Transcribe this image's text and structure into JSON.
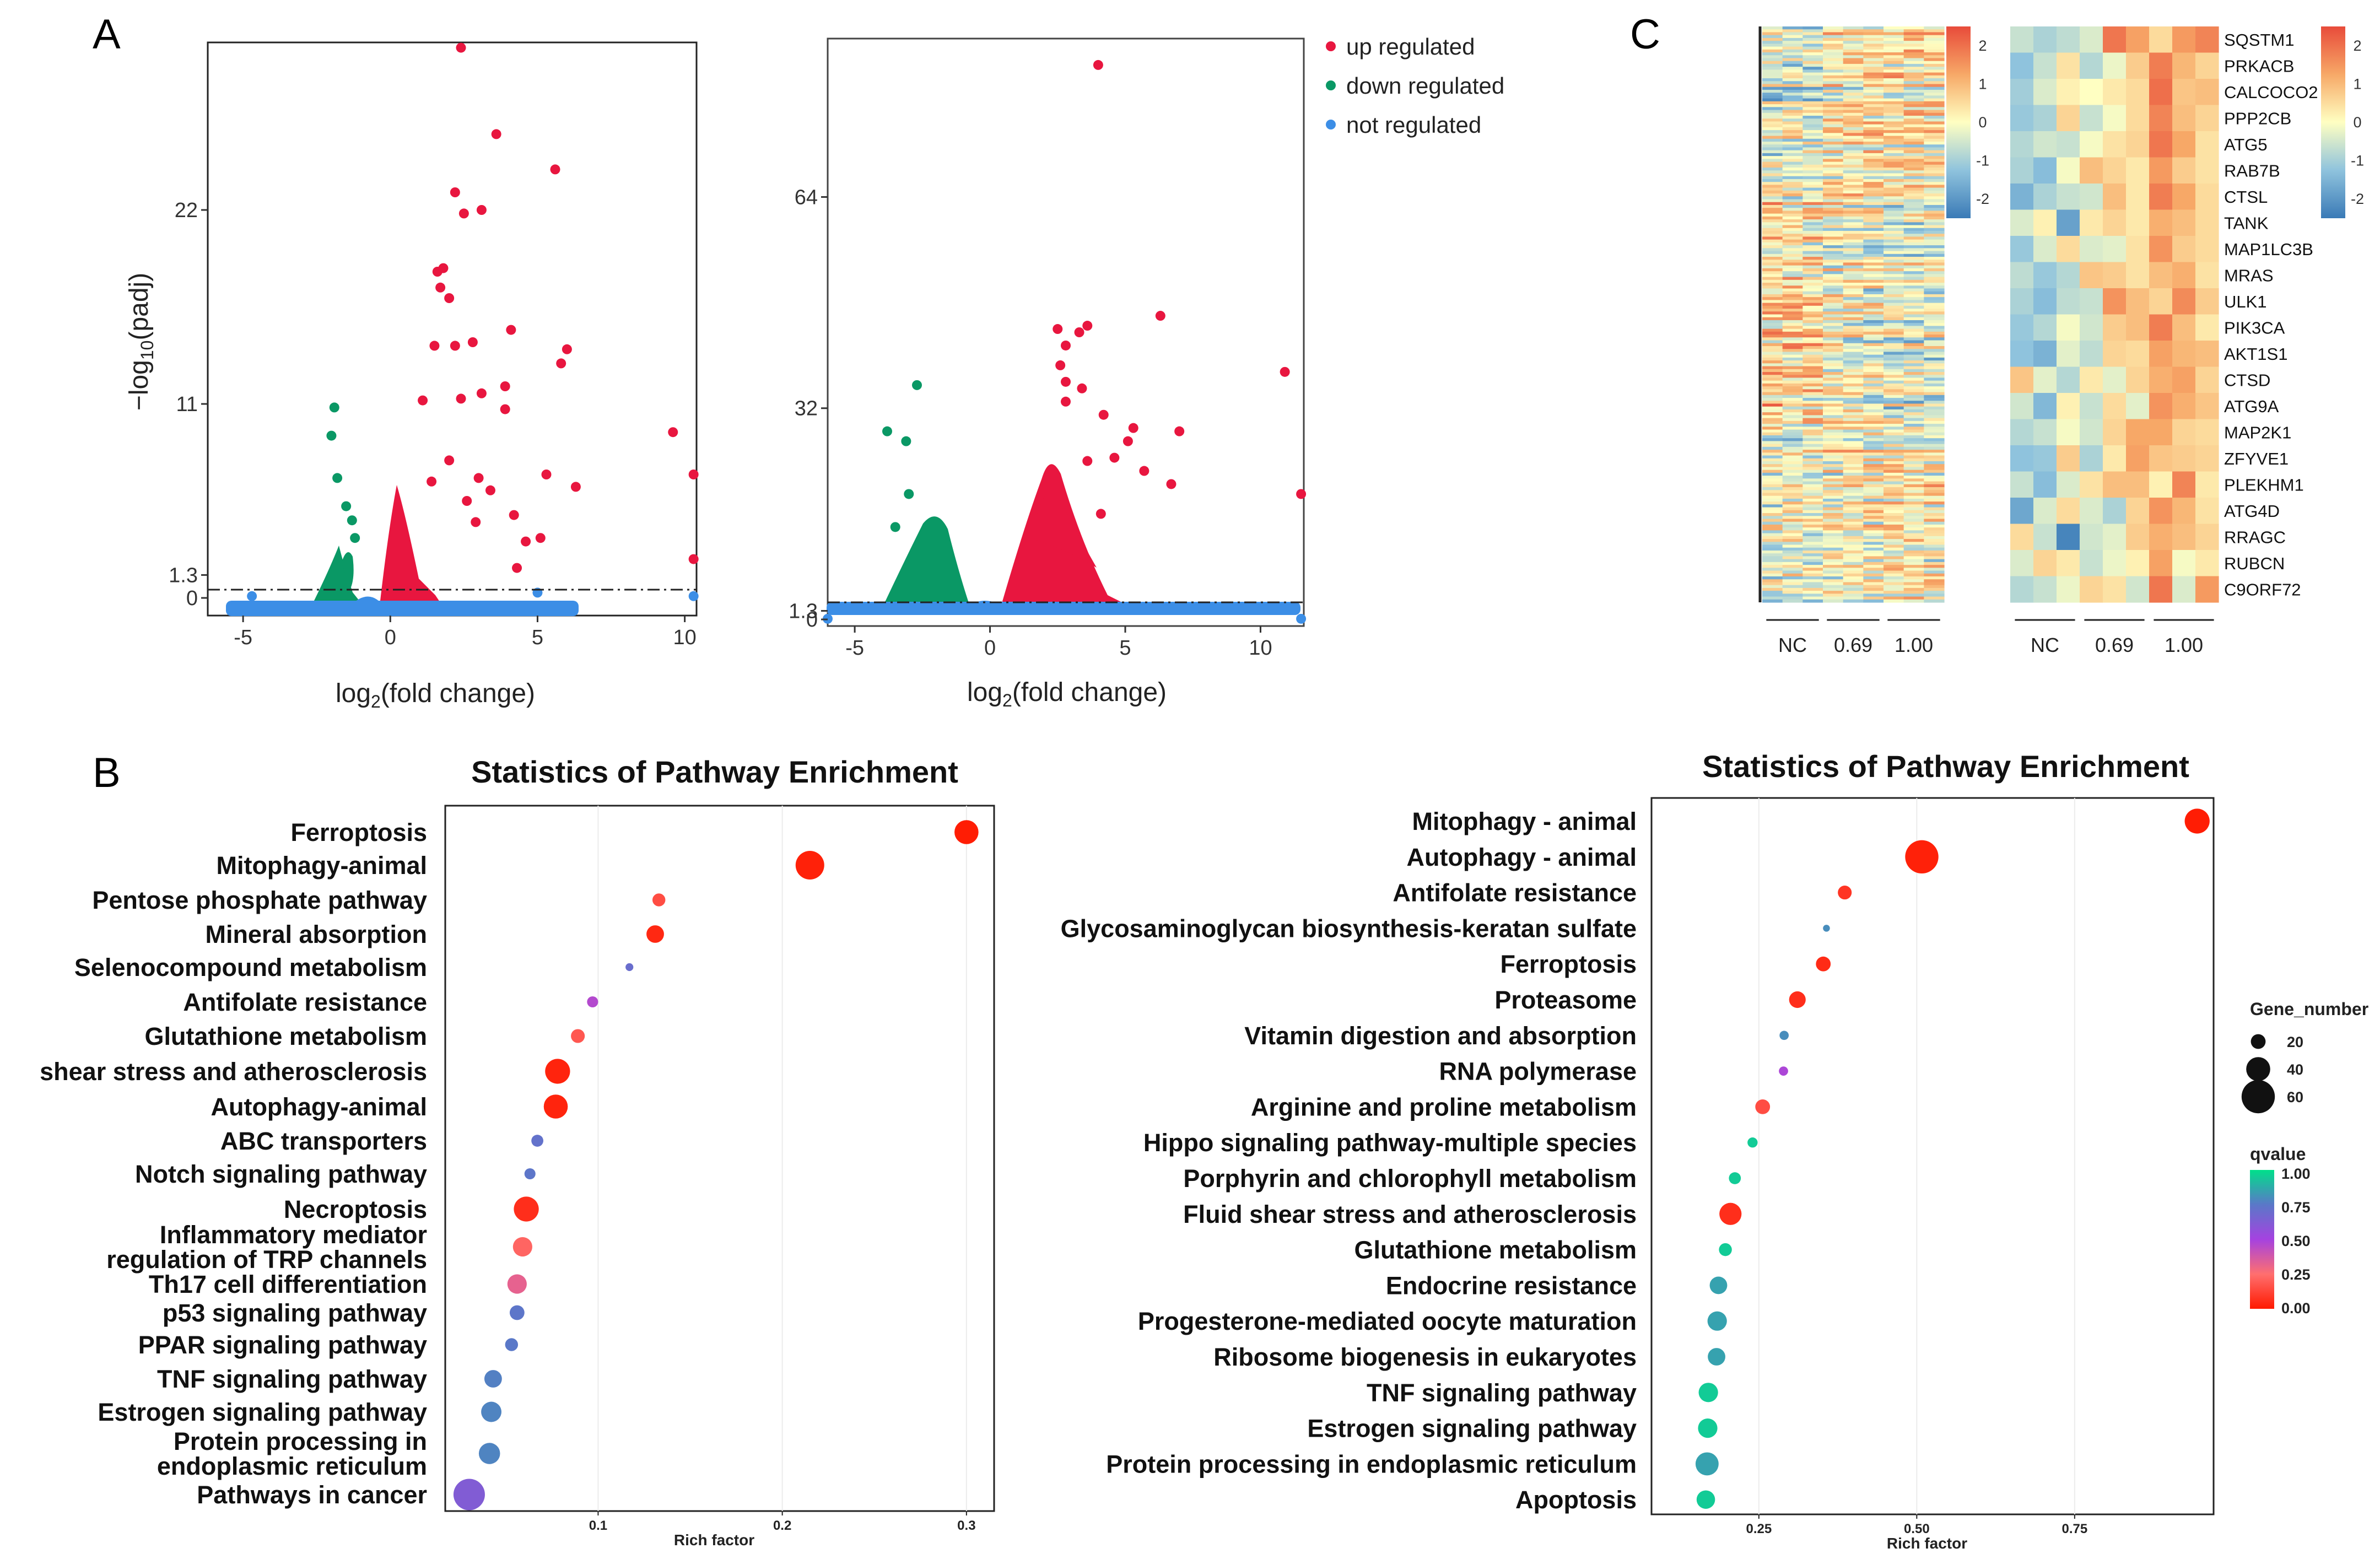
{
  "panels": {
    "a": "A",
    "b": "B",
    "c": "C"
  },
  "legend": {
    "entries": [
      {
        "label": "up regulated",
        "color": "#e8163f"
      },
      {
        "label": "down regulated",
        "color": "#0a9865"
      },
      {
        "label": "not regulated",
        "color": "#3c8ee6"
      }
    ]
  },
  "chart_data": [
    {
      "type": "scatter",
      "id": "volcano_left",
      "xlabel": "log2(fold change)",
      "ylabel": "-log10(padj)",
      "xticks": [
        "-5",
        "0",
        "5",
        "10"
      ],
      "yticks": [
        "0",
        "1.3",
        "11",
        "22"
      ],
      "xlim": [
        -6.2,
        10.4
      ],
      "ylim": [
        -1.0,
        31.5
      ],
      "threshold": 1.3,
      "series": [
        {
          "name": "up regulated",
          "color": "#e8163f",
          "points": [
            [
              2.4,
              31.2
            ],
            [
              3.6,
              26.3
            ],
            [
              2.2,
              23.0
            ],
            [
              5.6,
              24.3
            ],
            [
              2.5,
              21.8
            ],
            [
              3.1,
              22.0
            ],
            [
              1.6,
              18.5
            ],
            [
              1.8,
              18.7
            ],
            [
              1.7,
              17.6
            ],
            [
              2.0,
              17.0
            ],
            [
              2.8,
              14.5
            ],
            [
              4.1,
              15.2
            ],
            [
              6.0,
              14.1
            ],
            [
              5.8,
              13.3
            ],
            [
              2.2,
              14.3
            ],
            [
              1.5,
              14.3
            ],
            [
              3.9,
              12.0
            ],
            [
              3.1,
              11.6
            ],
            [
              3.9,
              10.7
            ],
            [
              2.4,
              11.3
            ],
            [
              1.1,
              11.2
            ],
            [
              9.6,
              9.4
            ],
            [
              10.3,
              7.0
            ],
            [
              5.3,
              7.0
            ],
            [
              6.3,
              6.3
            ],
            [
              3.0,
              6.8
            ],
            [
              2.0,
              7.8
            ],
            [
              3.4,
              6.1
            ],
            [
              2.6,
              5.5
            ],
            [
              1.4,
              6.6
            ],
            [
              2.9,
              4.3
            ],
            [
              4.2,
              4.7
            ],
            [
              5.1,
              3.4
            ],
            [
              10.3,
              2.2
            ],
            [
              4.6,
              3.2
            ],
            [
              4.3,
              1.7
            ]
          ]
        },
        {
          "name": "down regulated",
          "color": "#0a9865",
          "points": [
            [
              -1.9,
              10.8
            ],
            [
              -2.0,
              9.2
            ],
            [
              -1.8,
              6.8
            ],
            [
              -1.5,
              5.2
            ],
            [
              -1.3,
              4.4
            ],
            [
              -1.2,
              3.4
            ]
          ]
        },
        {
          "name": "not regulated",
          "color": "#3c8ee6",
          "points": [
            [
              -4.7,
              0.1
            ],
            [
              5.0,
              0.3
            ],
            [
              10.3,
              0.1
            ]
          ]
        }
      ]
    },
    {
      "type": "scatter",
      "id": "volcano_right",
      "xlabel": "log2(fold change)",
      "ylabel": "",
      "xticks": [
        "-5",
        "0",
        "5",
        "10"
      ],
      "yticks": [
        "0",
        "1.3",
        "32",
        "64"
      ],
      "xlim": [
        -6.0,
        11.6
      ],
      "ylim": [
        -1.0,
        88.0
      ],
      "threshold": 1.3,
      "series": [
        {
          "name": "up regulated",
          "color": "#e8163f",
          "points": [
            [
              4.0,
              84.0
            ],
            [
              6.3,
              46.0
            ],
            [
              10.9,
              37.5
            ],
            [
              3.6,
              44.5
            ],
            [
              3.3,
              43.5
            ],
            [
              2.5,
              44.0
            ],
            [
              2.8,
              41.5
            ],
            [
              2.6,
              38.5
            ],
            [
              2.8,
              36.0
            ],
            [
              3.4,
              35.0
            ],
            [
              2.8,
              33.0
            ],
            [
              4.2,
              31.0
            ],
            [
              5.3,
              29.0
            ],
            [
              5.1,
              27.0
            ],
            [
              7.0,
              28.5
            ],
            [
              4.6,
              24.5
            ],
            [
              5.7,
              22.5
            ],
            [
              6.7,
              20.5
            ],
            [
              3.6,
              24.0
            ],
            [
              11.5,
              19.0
            ],
            [
              4.1,
              16.0
            ]
          ]
        },
        {
          "name": "down regulated",
          "color": "#0a9865",
          "points": [
            [
              -2.7,
              35.5
            ],
            [
              -3.1,
              27.0
            ],
            [
              -3.8,
              28.5
            ],
            [
              -3.0,
              19.0
            ],
            [
              -3.5,
              14.0
            ]
          ]
        },
        {
          "name": "not regulated",
          "color": "#3c8ee6",
          "points": [
            [
              -6.0,
              0.1
            ],
            [
              11.5,
              0.1
            ]
          ]
        }
      ]
    },
    {
      "type": "heatmap",
      "id": "heatmap_all",
      "groups": [
        "NC",
        "0.69",
        "1.00"
      ],
      "colorbar": {
        "ticks": [
          "2",
          "1",
          "0",
          "-1",
          "-2"
        ],
        "min": -2.5,
        "max": 2.5
      }
    },
    {
      "type": "heatmap",
      "id": "heatmap_autophagy",
      "groups": [
        "NC",
        "0.69",
        "1.00"
      ],
      "genes": [
        "SQSTM1",
        "PRKACB",
        "CALCOCO2",
        "PPP2CB",
        "ATG5",
        "RAB7B",
        "CTSL",
        "TANK",
        "MAP1LC3B",
        "MRAS",
        "ULK1",
        "PIK3CA",
        "AKT1S1",
        "CTSD",
        "ATG9A",
        "MAP2K1",
        "ZFYVE1",
        "PLEKHM1",
        "ATG4D",
        "RRAGC",
        "RUBCN",
        "C9ORF72"
      ],
      "colorbar": {
        "ticks": [
          "2",
          "1",
          "0",
          "-1",
          "-2"
        ],
        "min": -2.5,
        "max": 2.5
      },
      "values": [
        [
          -0.6,
          -0.9,
          -0.7,
          -0.4,
          1.9,
          1.3,
          0.5,
          1.4,
          1.7
        ],
        [
          -1.2,
          -0.6,
          0.4,
          -0.8,
          -0.2,
          0.7,
          1.8,
          1.0,
          0.6
        ],
        [
          -1.0,
          -0.4,
          0.2,
          0.0,
          0.3,
          0.5,
          2.0,
          0.8,
          0.9
        ],
        [
          -1.1,
          -0.9,
          0.6,
          -0.6,
          -0.1,
          0.5,
          1.7,
          0.9,
          0.6
        ],
        [
          -0.8,
          -0.5,
          -0.6,
          -0.1,
          0.4,
          0.6,
          1.9,
          1.2,
          0.4
        ],
        [
          -0.9,
          -1.3,
          -0.1,
          0.9,
          0.6,
          0.3,
          1.4,
          0.7,
          0.4
        ],
        [
          -1.5,
          -0.9,
          -0.6,
          -0.5,
          0.9,
          0.3,
          1.8,
          1.2,
          0.5
        ],
        [
          -0.4,
          0.2,
          -1.8,
          0.3,
          0.6,
          0.3,
          1.1,
          0.9,
          0.5
        ],
        [
          -1.1,
          -0.4,
          0.5,
          -0.4,
          -0.3,
          0.4,
          1.5,
          0.7,
          0.5
        ],
        [
          -0.7,
          -1.1,
          -0.8,
          0.8,
          0.7,
          0.4,
          0.9,
          1.1,
          0.4
        ],
        [
          -0.9,
          -1.3,
          -0.7,
          -0.6,
          1.5,
          0.9,
          0.6,
          1.6,
          0.7
        ],
        [
          -1.1,
          -0.8,
          -0.1,
          -0.5,
          0.7,
          0.9,
          1.8,
          0.9,
          0.3
        ],
        [
          -1.2,
          -1.5,
          -0.3,
          -0.7,
          0.6,
          0.5,
          1.3,
          1.0,
          0.9
        ],
        [
          0.8,
          -0.3,
          -0.8,
          0.3,
          -0.3,
          0.6,
          1.1,
          1.3,
          0.6
        ],
        [
          -0.5,
          -1.4,
          0.2,
          -0.6,
          0.5,
          -0.3,
          1.5,
          1.1,
          0.8
        ],
        [
          -0.8,
          -0.6,
          -0.1,
          -0.5,
          0.6,
          1.2,
          1.2,
          0.6,
          0.5
        ],
        [
          -1.2,
          -1.1,
          0.7,
          -0.9,
          0.3,
          1.3,
          0.8,
          0.7,
          0.6
        ],
        [
          -0.6,
          -1.3,
          -0.4,
          0.4,
          0.9,
          0.9,
          0.2,
          1.7,
          0.3
        ],
        [
          -1.7,
          -0.4,
          0.5,
          -0.4,
          -0.9,
          0.6,
          1.5,
          1.0,
          0.4
        ],
        [
          0.5,
          -0.6,
          -2.3,
          -0.5,
          -0.3,
          0.7,
          1.1,
          0.9,
          0.6
        ],
        [
          -0.4,
          0.6,
          0.3,
          -0.6,
          -0.2,
          0.2,
          1.3,
          -0.1,
          0.3
        ],
        [
          -0.8,
          -0.6,
          -0.2,
          0.6,
          0.4,
          -0.5,
          1.9,
          -0.4,
          1.4
        ]
      ]
    },
    {
      "type": "scatter",
      "id": "enrichment_left",
      "title": "Statistics of Pathway Enrichment",
      "xlabel": "Rich factor",
      "xticks": [
        "0.1",
        "0.2",
        "0.3"
      ],
      "xlim": [
        0.017,
        0.315
      ],
      "pathways": [
        "Ferroptosis",
        "Mitophagy-animal",
        "Pentose phosphate pathway",
        "Mineral absorption",
        "Selenocompound metabolism",
        "Antifolate resistance",
        "Glutathione metabolism",
        "shear stress and atherosclerosis",
        "Autophagy-animal",
        "ABC transporters",
        "Notch signaling pathway",
        "Necroptosis",
        "Inflammatory mediator",
        "regulation of TRP channels",
        "Th17 cell differentiation",
        "p53 signaling pathway",
        "PPAR signaling pathway",
        "TNF signaling pathway",
        "Estrogen signaling pathway",
        "Protein processing in",
        "endoplasmic reticulum",
        "Pathways in cancer"
      ],
      "points": [
        {
          "rich": 0.3,
          "q": 0.01,
          "genes": 40
        },
        {
          "rich": 0.215,
          "q": 0.02,
          "genes": 50
        },
        {
          "rich": 0.133,
          "q": 0.15,
          "genes": 16
        },
        {
          "rich": 0.131,
          "q": 0.04,
          "genes": 26
        },
        {
          "rich": 0.117,
          "q": 0.7,
          "genes": 5
        },
        {
          "rich": 0.097,
          "q": 0.46,
          "genes": 12
        },
        {
          "rich": 0.089,
          "q": 0.18,
          "genes": 18
        },
        {
          "rich": 0.078,
          "q": 0.03,
          "genes": 42
        },
        {
          "rich": 0.077,
          "q": 0.03,
          "genes": 40
        },
        {
          "rich": 0.067,
          "q": 0.72,
          "genes": 14
        },
        {
          "rich": 0.063,
          "q": 0.74,
          "genes": 12
        },
        {
          "rich": 0.061,
          "q": 0.06,
          "genes": 42
        },
        {
          "rich": 0.059,
          "q": 0.22,
          "genes": 30
        },
        {
          "rich": 0.056,
          "q": 0.32,
          "genes": 30
        },
        {
          "rich": 0.056,
          "q": 0.74,
          "genes": 20
        },
        {
          "rich": 0.053,
          "q": 0.75,
          "genes": 16
        },
        {
          "rich": 0.043,
          "q": 0.77,
          "genes": 26
        },
        {
          "rich": 0.042,
          "q": 0.78,
          "genes": 32
        },
        {
          "rich": 0.041,
          "q": 0.78,
          "genes": 34
        },
        {
          "rich": 0.03,
          "q": 0.62,
          "genes": 56
        }
      ],
      "point_rows": [
        0,
        1,
        2,
        3,
        4,
        5,
        6,
        7,
        8,
        9,
        10,
        11,
        12.5,
        14,
        15,
        16,
        17,
        18,
        19.5,
        21
      ]
    },
    {
      "type": "scatter",
      "id": "enrichment_right",
      "title": "Statistics of Pathway Enrichment",
      "xlabel": "Rich factor",
      "xticks": [
        "0.25",
        "0.50",
        "0.75"
      ],
      "xlim": [
        0.08,
        0.97
      ],
      "pathways": [
        "Mitophagy - animal",
        "Autophagy - animal",
        "Antifolate resistance",
        "Glycosaminoglycan biosynthesis-keratan sulfate",
        "Ferroptosis",
        "Proteasome",
        "Vitamin digestion and absorption",
        "RNA polymerase",
        "Arginine and proline metabolism",
        "Hippo signaling pathway-multiple species",
        "Porphyrin and chlorophyll metabolism",
        "Fluid shear stress and atherosclerosis",
        "Glutathione metabolism",
        "Endocrine resistance",
        "Progesterone-mediated oocyte maturation",
        "Ribosome biogenesis in eukaryotes",
        "TNF signaling pathway",
        "Estrogen signaling pathway",
        "Protein processing in endoplasmic reticulum",
        "Apoptosis"
      ],
      "points": [
        {
          "rich": 0.944,
          "q": 0.01,
          "genes": 42
        },
        {
          "rich": 0.508,
          "q": 0.02,
          "genes": 60
        },
        {
          "rich": 0.386,
          "q": 0.08,
          "genes": 18
        },
        {
          "rich": 0.357,
          "q": 0.8,
          "genes": 3
        },
        {
          "rich": 0.352,
          "q": 0.05,
          "genes": 20
        },
        {
          "rich": 0.311,
          "q": 0.06,
          "genes": 24
        },
        {
          "rich": 0.29,
          "q": 0.8,
          "genes": 8
        },
        {
          "rich": 0.289,
          "q": 0.48,
          "genes": 8
        },
        {
          "rich": 0.256,
          "q": 0.15,
          "genes": 20
        },
        {
          "rich": 0.24,
          "q": 0.95,
          "genes": 10
        },
        {
          "rich": 0.212,
          "q": 0.95,
          "genes": 14
        },
        {
          "rich": 0.205,
          "q": 0.06,
          "genes": 36
        },
        {
          "rich": 0.197,
          "q": 0.95,
          "genes": 16
        },
        {
          "rich": 0.186,
          "q": 0.85,
          "genes": 26
        },
        {
          "rich": 0.184,
          "q": 0.85,
          "genes": 30
        },
        {
          "rich": 0.183,
          "q": 0.85,
          "genes": 26
        },
        {
          "rich": 0.17,
          "q": 0.95,
          "genes": 30
        },
        {
          "rich": 0.169,
          "q": 0.95,
          "genes": 30
        },
        {
          "rich": 0.168,
          "q": 0.85,
          "genes": 38
        },
        {
          "rich": 0.166,
          "q": 0.95,
          "genes": 28
        }
      ],
      "legend": {
        "size_title": "Gene_number",
        "size_values": [
          "20",
          "40",
          "60"
        ],
        "color_title": "qvalue",
        "color_values": [
          "1.00",
          "0.75",
          "0.50",
          "0.25",
          "0.00"
        ]
      }
    }
  ]
}
